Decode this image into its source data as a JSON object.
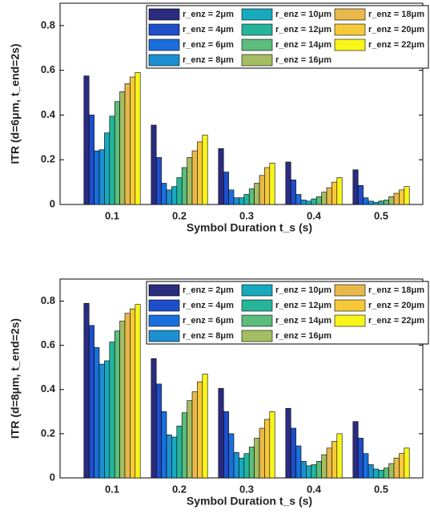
{
  "chart_data": [
    {
      "type": "bar",
      "ylabel": "ITR (d=6μm, t_end=2s)",
      "xlabel": "Symbol Duration t_s (s)",
      "categories": [
        "0.1",
        "0.2",
        "0.3",
        "0.4",
        "0.5"
      ],
      "ylim": [
        0,
        0.9
      ],
      "yticks": [
        0,
        0.2,
        0.4,
        0.6,
        0.8
      ],
      "series": [
        {
          "name": "r_enz = 2μm",
          "color": "#2b2c7f",
          "values": [
            0.575,
            0.355,
            0.25,
            0.19,
            0.155
          ]
        },
        {
          "name": "r_enz = 4μm",
          "color": "#1f4ec9",
          "values": [
            0.4,
            0.21,
            0.145,
            0.11,
            0.085
          ]
        },
        {
          "name": "r_enz = 6μm",
          "color": "#1a6fdc",
          "values": [
            0.24,
            0.095,
            0.065,
            0.045,
            0.03
          ]
        },
        {
          "name": "r_enz = 8μm",
          "color": "#1c8fd0",
          "values": [
            0.245,
            0.065,
            0.03,
            0.02,
            0.015
          ]
        },
        {
          "name": "r_enz = 10μm",
          "color": "#17aabf",
          "values": [
            0.32,
            0.08,
            0.03,
            0.015,
            0.01
          ]
        },
        {
          "name": "r_enz = 12μm",
          "color": "#25b59a",
          "values": [
            0.395,
            0.12,
            0.045,
            0.025,
            0.015
          ]
        },
        {
          "name": "r_enz = 14μm",
          "color": "#5cbd7c",
          "values": [
            0.46,
            0.165,
            0.07,
            0.035,
            0.02
          ]
        },
        {
          "name": "r_enz = 16μm",
          "color": "#a5bd62",
          "values": [
            0.505,
            0.21,
            0.095,
            0.055,
            0.035
          ]
        },
        {
          "name": "r_enz = 18μm",
          "color": "#e8b84a",
          "values": [
            0.54,
            0.24,
            0.13,
            0.075,
            0.05
          ]
        },
        {
          "name": "r_enz = 20μm",
          "color": "#f6c93a",
          "values": [
            0.57,
            0.28,
            0.165,
            0.1,
            0.065
          ]
        },
        {
          "name": "r_enz = 22μm",
          "color": "#f8f51a",
          "values": [
            0.59,
            0.31,
            0.185,
            0.12,
            0.08
          ]
        }
      ]
    },
    {
      "type": "bar",
      "ylabel": "ITR (d=8μm, t_end=2s)",
      "xlabel": "Symbol Duration t_s (s)",
      "categories": [
        "0.1",
        "0.2",
        "0.3",
        "0.4",
        "0.5"
      ],
      "ylim": [
        0,
        0.9
      ],
      "yticks": [
        0,
        0.2,
        0.4,
        0.6,
        0.8
      ],
      "series": [
        {
          "name": "r_enz = 2μm",
          "color": "#2b2c7f",
          "values": [
            0.79,
            0.54,
            0.405,
            0.315,
            0.255
          ]
        },
        {
          "name": "r_enz = 4μm",
          "color": "#1f4ec9",
          "values": [
            0.69,
            0.425,
            0.3,
            0.225,
            0.18
          ]
        },
        {
          "name": "r_enz = 6μm",
          "color": "#1a6fdc",
          "values": [
            0.59,
            0.3,
            0.2,
            0.145,
            0.11
          ]
        },
        {
          "name": "r_enz = 8μm",
          "color": "#1c8fd0",
          "values": [
            0.515,
            0.195,
            0.115,
            0.075,
            0.06
          ]
        },
        {
          "name": "r_enz = 10μm",
          "color": "#17aabf",
          "values": [
            0.53,
            0.185,
            0.09,
            0.055,
            0.04
          ]
        },
        {
          "name": "r_enz = 12μm",
          "color": "#25b59a",
          "values": [
            0.615,
            0.235,
            0.11,
            0.06,
            0.035
          ]
        },
        {
          "name": "r_enz = 14μm",
          "color": "#5cbd7c",
          "values": [
            0.665,
            0.295,
            0.14,
            0.075,
            0.045
          ]
        },
        {
          "name": "r_enz = 16μm",
          "color": "#a5bd62",
          "values": [
            0.71,
            0.35,
            0.18,
            0.105,
            0.065
          ]
        },
        {
          "name": "r_enz = 18μm",
          "color": "#e8b84a",
          "values": [
            0.745,
            0.39,
            0.225,
            0.135,
            0.09
          ]
        },
        {
          "name": "r_enz = 20μm",
          "color": "#f6c93a",
          "values": [
            0.765,
            0.435,
            0.265,
            0.165,
            0.11
          ]
        },
        {
          "name": "r_enz = 22μm",
          "color": "#f8f51a",
          "values": [
            0.785,
            0.47,
            0.3,
            0.2,
            0.135
          ]
        }
      ]
    }
  ]
}
